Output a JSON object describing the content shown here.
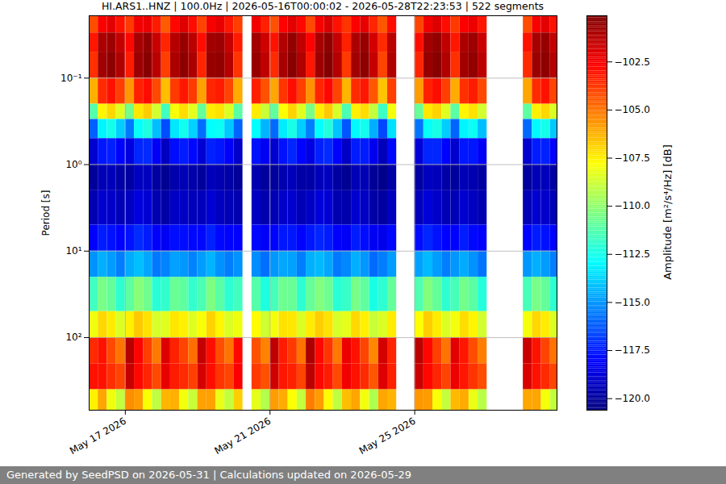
{
  "chart_data": {
    "type": "heatmap",
    "title": "HI.ARS1..HNZ | 100.0Hz | 2026-05-16T00:00:02 - 2026-05-28T22:23:53 | 522 segments",
    "footer": "Generated by SeedPSD on 2026-05-31 | Calculations updated on 2026-05-29",
    "ylabel": "Period [s]",
    "log": "y",
    "grid": true,
    "color": "jet",
    "xlim": [
      "2026-05-16T00:00:02",
      "2026-05-28T22:23:53"
    ],
    "xticks": [
      {
        "value": "2026-05-17T00:00:00",
        "label": "May 17 2026"
      },
      {
        "value": "2026-05-21T00:00:00",
        "label": "May 21 2026"
      },
      {
        "value": "2026-05-25T00:00:00",
        "label": "May 25 2026"
      }
    ],
    "ylim": [
      0.019,
      690
    ],
    "yticks": [
      {
        "value": 0.1,
        "label": "10⁻¹"
      },
      {
        "value": 1,
        "label": "10⁰"
      },
      {
        "value": 10,
        "label": "10¹"
      },
      {
        "value": 100,
        "label": "10²"
      }
    ],
    "colorbar_label": "Amplitude [m²/s⁴/Hz] [dB]",
    "clim": [
      -120.6,
      -100.1
    ],
    "cticks": [
      {
        "value": -102.5,
        "label": "−102.5"
      },
      {
        "value": -105,
        "label": "−105.0"
      },
      {
        "value": -107.5,
        "label": "−107.5"
      },
      {
        "value": -110,
        "label": "−110.0"
      },
      {
        "value": -112.5,
        "label": "−112.5"
      },
      {
        "value": -115,
        "label": "−115.0"
      },
      {
        "value": -117.5,
        "label": "−117.5"
      },
      {
        "value": -120,
        "label": "−120.0"
      }
    ],
    "time_bins": [
      "2026-05-16T00:00:00",
      "2026-05-16T06:00:00",
      "2026-05-16T12:00:00",
      "2026-05-16T18:00:00",
      "2026-05-17T00:00:00",
      "2026-05-17T06:00:00",
      "2026-05-17T12:00:00",
      "2026-05-17T18:00:00",
      "2026-05-18T00:00:00",
      "2026-05-18T06:00:00",
      "2026-05-18T12:00:00",
      "2026-05-18T18:00:00",
      "2026-05-19T00:00:00",
      "2026-05-19T06:00:00",
      "2026-05-19T12:00:00",
      "2026-05-19T18:00:00",
      "2026-05-20T00:00:00",
      "2026-05-20T06:00:00",
      "2026-05-20T12:00:00",
      "2026-05-20T18:00:00",
      "2026-05-21T00:00:00",
      "2026-05-21T06:00:00",
      "2026-05-21T12:00:00",
      "2026-05-21T18:00:00",
      "2026-05-22T00:00:00",
      "2026-05-22T06:00:00",
      "2026-05-22T12:00:00",
      "2026-05-22T18:00:00",
      "2026-05-23T00:00:00",
      "2026-05-23T06:00:00",
      "2026-05-23T12:00:00",
      "2026-05-23T18:00:00",
      "2026-05-24T00:00:00",
      "2026-05-24T06:00:00",
      "2026-05-24T12:00:00",
      "2026-05-24T18:00:00",
      "2026-05-25T00:00:00",
      "2026-05-25T06:00:00",
      "2026-05-25T12:00:00",
      "2026-05-25T18:00:00",
      "2026-05-26T00:00:00",
      "2026-05-26T06:00:00",
      "2026-05-26T12:00:00",
      "2026-05-26T18:00:00",
      "2026-05-27T00:00:00",
      "2026-05-27T06:00:00",
      "2026-05-27T12:00:00",
      "2026-05-27T18:00:00",
      "2026-05-28T00:00:00",
      "2026-05-28T06:00:00",
      "2026-05-28T12:00:00",
      "2026-05-28T18:00:00",
      "2026-05-29T00:00:00"
    ],
    "period_bins": [
      0.019,
      0.03,
      0.05,
      0.1,
      0.2,
      0.3,
      0.5,
      1,
      2,
      5,
      10,
      20,
      50,
      100,
      200,
      400,
      690
    ],
    "cells": [
      [
        -104.2,
        -102.6,
        -102.1,
        -103.0,
        -103.8,
        -102.4,
        -102.3,
        -103.2,
        -104.5,
        -102.8,
        -102.0,
        -102.9,
        -104.0,
        -102.5,
        -102.2,
        -103.1,
        -103.9,
        null,
        -102.4,
        -103.3,
        -104.3,
        -102.7,
        -102.1,
        -102.8,
        -104.1,
        -102.5,
        -101.9,
        -103.0,
        -103.7,
        -102.6,
        -102.2,
        -103.4,
        -104.4,
        -102.9,
        null,
        null,
        -104.0,
        -102.4,
        -102.0,
        -102.9,
        -103.8,
        -102.6,
        -102.3,
        -103.1,
        null,
        null,
        null,
        null,
        -104.2,
        -102.5,
        -102.1,
        -103.0
      ],
      [
        -103.1,
        -101.0,
        -100.7,
        -101.5,
        -102.8,
        -100.9,
        -100.5,
        -101.6,
        -103.4,
        -101.2,
        -100.6,
        -101.3,
        -102.9,
        -100.8,
        -100.7,
        -101.5,
        -103.2,
        null,
        -100.8,
        -101.7,
        -103.0,
        -101.1,
        -100.5,
        -101.4,
        -102.7,
        -100.9,
        -100.4,
        -101.5,
        -103.3,
        -101.0,
        -100.6,
        -101.8,
        -103.5,
        -101.3,
        null,
        null,
        -102.9,
        -100.8,
        -100.5,
        -101.4,
        -103.1,
        -101.0,
        -100.7,
        -101.6,
        null,
        null,
        null,
        null,
        -103.0,
        -100.9,
        -100.6,
        -101.5
      ],
      [
        -103.6,
        -100.8,
        -100.4,
        -101.1,
        -103.2,
        -100.7,
        -100.3,
        -101.3,
        -103.9,
        -101.0,
        -100.4,
        -101.0,
        -103.4,
        -100.6,
        -100.5,
        -101.2,
        -103.7,
        null,
        -100.6,
        -101.4,
        -103.5,
        -100.9,
        -100.3,
        -101.1,
        -103.1,
        -100.7,
        -100.2,
        -101.2,
        -103.8,
        -100.8,
        -100.4,
        -101.5,
        -104.0,
        -101.1,
        null,
        null,
        -103.4,
        -100.6,
        -100.3,
        -101.1,
        -103.6,
        -100.8,
        -100.5,
        -101.3,
        null,
        null,
        null,
        null,
        -103.5,
        -100.7,
        -100.4,
        -101.2
      ],
      [
        -106.2,
        -103.5,
        -103.0,
        -103.9,
        -105.7,
        -103.3,
        -102.9,
        -104.1,
        -106.5,
        -103.8,
        -103.1,
        -103.8,
        -105.9,
        -103.4,
        -103.2,
        -104.0,
        -106.1,
        null,
        -103.3,
        -104.3,
        -106.0,
        -103.7,
        -102.9,
        -103.9,
        -105.6,
        -103.4,
        -102.8,
        -104.0,
        -106.3,
        -103.5,
        -103.1,
        -104.4,
        -106.6,
        -103.9,
        null,
        null,
        -105.8,
        -103.3,
        -102.9,
        -103.9,
        -106.1,
        -103.6,
        -103.2,
        -104.1,
        null,
        null,
        null,
        null,
        -106.0,
        -103.5,
        -103.0,
        -104.0
      ],
      [
        -111.2,
        -107.6,
        -107.0,
        -108.4,
        -110.6,
        -107.3,
        -106.8,
        -108.7,
        -111.6,
        -107.9,
        -107.1,
        -108.3,
        -110.9,
        -107.4,
        -107.2,
        -108.5,
        -111.1,
        null,
        -107.4,
        -108.9,
        -111.0,
        -107.8,
        -106.9,
        -108.4,
        -110.5,
        -107.4,
        -106.7,
        -108.6,
        -111.4,
        -107.5,
        -107.1,
        -109.0,
        -111.7,
        -108.0,
        null,
        null,
        -110.8,
        -107.3,
        -106.9,
        -108.4,
        -111.1,
        -107.6,
        -107.2,
        -108.7,
        null,
        null,
        null,
        null,
        -111.0,
        -107.5,
        -107.0,
        -108.5
      ],
      [
        -116.1,
        -113.1,
        -112.5,
        -113.9,
        -115.6,
        -112.8,
        -112.3,
        -114.2,
        -116.5,
        -113.4,
        -112.6,
        -113.8,
        -115.8,
        -112.9,
        -112.7,
        -114.0,
        -116.0,
        null,
        -112.9,
        -114.4,
        -115.9,
        -113.3,
        -112.4,
        -113.9,
        -115.5,
        -112.9,
        -112.2,
        -114.1,
        -116.3,
        -113.0,
        -112.6,
        -114.5,
        -116.6,
        -113.5,
        null,
        null,
        -115.7,
        -112.8,
        -112.4,
        -113.9,
        -116.0,
        -113.1,
        -112.7,
        -114.2,
        null,
        null,
        null,
        null,
        -115.9,
        -113.0,
        -112.5,
        -114.0
      ],
      [
        -119.0,
        -117.6,
        -117.4,
        -118.0,
        -118.7,
        -117.3,
        -117.2,
        -118.2,
        -119.3,
        -117.8,
        -117.5,
        -117.9,
        -118.9,
        -117.4,
        -117.6,
        -118.1,
        -119.1,
        null,
        -117.7,
        -118.3,
        -119.0,
        -117.7,
        -117.3,
        -118.0,
        -118.6,
        -117.4,
        -117.2,
        -118.1,
        -119.2,
        -117.5,
        -117.5,
        -118.4,
        -119.4,
        -117.9,
        null,
        null,
        -118.8,
        -117.3,
        -117.3,
        -118.0,
        -119.0,
        -117.6,
        -117.6,
        -118.2,
        null,
        null,
        null,
        null,
        -119.0,
        -117.5,
        -117.4,
        -118.0
      ],
      [
        -120.1,
        -119.5,
        -119.4,
        -119.8,
        -119.9,
        -119.3,
        -119.3,
        -119.9,
        -120.2,
        -119.7,
        -119.5,
        -119.7,
        -120.0,
        -119.4,
        -119.6,
        -119.8,
        -120.1,
        null,
        -119.6,
        -120.0,
        -120.0,
        -119.6,
        -119.4,
        -119.8,
        -119.8,
        -119.4,
        -119.3,
        -119.9,
        -120.2,
        -119.5,
        -119.5,
        -120.1,
        -120.3,
        -119.8,
        null,
        null,
        -119.9,
        -119.3,
        -119.4,
        -119.8,
        -120.0,
        -119.5,
        -119.6,
        -119.9,
        null,
        null,
        null,
        null,
        -120.0,
        -119.5,
        -119.4,
        -119.8
      ],
      [
        -119.6,
        -119.0,
        -119.1,
        -119.5,
        -119.3,
        -118.7,
        -118.9,
        -119.6,
        -119.8,
        -119.2,
        -119.2,
        -119.4,
        -119.4,
        -118.9,
        -119.3,
        -119.5,
        -119.6,
        null,
        -119.3,
        -119.7,
        -119.5,
        -119.1,
        -119.0,
        -119.5,
        -119.2,
        -118.8,
        -118.9,
        -119.6,
        -119.7,
        -119.0,
        -119.2,
        -119.8,
        -119.9,
        -119.3,
        null,
        null,
        -119.4,
        -118.8,
        -119.1,
        -119.5,
        -119.5,
        -119.0,
        -119.3,
        -119.6,
        null,
        null,
        null,
        null,
        -119.5,
        -119.0,
        -119.1,
        -119.5
      ],
      [
        -118.1,
        -117.5,
        -117.7,
        -118.0,
        -117.7,
        -117.2,
        -117.5,
        -118.1,
        -118.3,
        -117.8,
        -117.8,
        -117.9,
        -117.9,
        -117.4,
        -117.9,
        -118.0,
        -118.1,
        null,
        -117.9,
        -118.2,
        -118.0,
        -117.6,
        -117.6,
        -118.0,
        -117.6,
        -117.3,
        -117.5,
        -118.1,
        -118.2,
        -117.5,
        -117.8,
        -118.3,
        -118.4,
        -117.9,
        null,
        null,
        -117.8,
        -117.3,
        -117.7,
        -118.0,
        -118.0,
        -117.5,
        -117.9,
        -118.1,
        null,
        null,
        null,
        null,
        -118.0,
        -117.5,
        -117.7,
        -118.0
      ],
      [
        -115.1,
        -114.5,
        -114.9,
        -115.5,
        -114.6,
        -114.2,
        -114.7,
        -115.6,
        -115.4,
        -114.8,
        -115.0,
        -115.4,
        -114.9,
        -114.4,
        -115.1,
        -115.5,
        -115.1,
        null,
        -115.2,
        -115.8,
        -115.0,
        -114.7,
        -114.8,
        -115.5,
        -114.5,
        -114.3,
        -114.7,
        -115.6,
        -115.3,
        -114.5,
        -115.0,
        -115.9,
        -115.5,
        -114.9,
        null,
        null,
        -114.8,
        -114.3,
        -114.9,
        -115.5,
        -115.0,
        -114.6,
        -115.1,
        -115.7,
        null,
        null,
        null,
        null,
        -115.0,
        -114.5,
        -114.9,
        -115.5
      ],
      [
        -111.6,
        -110.5,
        -110.9,
        -112.0,
        -111.0,
        -110.2,
        -110.7,
        -112.1,
        -111.9,
        -110.8,
        -111.0,
        -111.9,
        -111.4,
        -110.4,
        -111.1,
        -112.0,
        -111.6,
        null,
        -111.2,
        -112.3,
        -111.5,
        -110.7,
        -110.8,
        -112.0,
        -110.9,
        -110.3,
        -110.7,
        -112.1,
        -111.8,
        -110.5,
        -111.0,
        -112.4,
        -112.0,
        -110.9,
        null,
        null,
        -111.3,
        -110.3,
        -110.9,
        -112.0,
        -111.5,
        -110.6,
        -111.1,
        -112.2,
        null,
        null,
        null,
        null,
        -111.5,
        -110.5,
        -110.9,
        -112.0
      ],
      [
        -108.1,
        -107.0,
        -107.4,
        -108.5,
        -107.5,
        -106.7,
        -107.2,
        -108.6,
        -108.4,
        -107.3,
        -107.5,
        -108.4,
        -107.9,
        -106.9,
        -107.6,
        -108.5,
        -108.1,
        null,
        -107.7,
        -108.8,
        -108.0,
        -107.2,
        -107.3,
        -108.5,
        -107.4,
        -106.8,
        -107.2,
        -108.6,
        -108.3,
        -107.0,
        -107.5,
        -108.9,
        -108.5,
        -107.4,
        null,
        null,
        -107.8,
        -106.8,
        -107.4,
        -108.5,
        -108.0,
        -107.1,
        -107.6,
        -108.7,
        null,
        null,
        null,
        null,
        -108.0,
        -107.0,
        -107.4,
        -108.5
      ],
      [
        -103.5,
        -103.0,
        -104.1,
        -105.0,
        -101.2,
        -102.7,
        -103.9,
        -105.1,
        -102.0,
        -103.3,
        -104.0,
        -104.9,
        -101.5,
        -102.9,
        -104.2,
        -105.0,
        -102.8,
        null,
        -104.3,
        -105.3,
        -101.4,
        -103.2,
        -103.8,
        -105.0,
        -101.0,
        -102.8,
        -103.7,
        -105.1,
        -102.3,
        -103.0,
        -104.0,
        -105.4,
        -101.8,
        -103.4,
        null,
        null,
        -101.3,
        -102.8,
        -103.9,
        -105.0,
        -102.1,
        -103.1,
        -104.2,
        -105.2,
        null,
        null,
        null,
        null,
        -101.6,
        -103.0,
        -104.0,
        -105.0
      ],
      [
        -103.0,
        -103.0,
        -103.6,
        -104.0,
        -101.5,
        -102.8,
        -103.4,
        -104.1,
        -102.2,
        -103.2,
        -103.5,
        -103.9,
        -101.8,
        -102.9,
        -103.7,
        -104.0,
        -102.6,
        null,
        -103.8,
        -104.3,
        -101.7,
        -103.1,
        -103.3,
        -104.0,
        -101.3,
        -102.8,
        -103.2,
        -104.1,
        -102.4,
        -103.0,
        -103.5,
        -104.4,
        -102.0,
        -103.3,
        null,
        null,
        -101.6,
        -102.8,
        -103.4,
        -104.0,
        -102.3,
        -103.1,
        -103.7,
        -104.2,
        null,
        null,
        null,
        null,
        -101.9,
        -103.0,
        -103.5,
        -104.0
      ],
      [
        -107.5,
        -106.0,
        -108.1,
        -109.0,
        -105.5,
        -105.8,
        -107.9,
        -109.1,
        -106.3,
        -106.2,
        -108.0,
        -108.9,
        -105.9,
        -105.9,
        -108.2,
        -109.0,
        -106.8,
        null,
        -108.3,
        -109.3,
        -105.8,
        -106.1,
        -107.8,
        -109.0,
        -105.2,
        -105.8,
        -107.7,
        -109.1,
        -106.5,
        -106.0,
        -108.0,
        -109.4,
        -106.0,
        -106.3,
        null,
        null,
        -105.7,
        -105.8,
        -107.9,
        -109.0,
        -106.4,
        -106.1,
        -108.2,
        -109.2,
        null,
        null,
        null,
        null,
        -106.0,
        -106.0,
        -108.0,
        -109.0
      ]
    ]
  }
}
